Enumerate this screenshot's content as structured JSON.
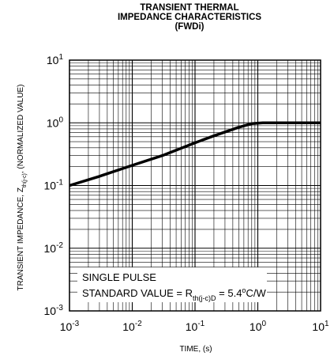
{
  "chart_data": {
    "type": "line",
    "title_lines": [
      "TRANSIENT THERMAL",
      "IMPEDANCE CHARACTERISTICS",
      "(FWDi)"
    ],
    "xlabel": "TIME, (s)",
    "ylabel": {
      "prefix": "TRANSIENT  IMPEDANCE, Z",
      "sub": "th(j-c)",
      "suffix": ", (NORMALIZED VALUE)"
    },
    "x_scale": "log",
    "y_scale": "log",
    "xlim": [
      0.001,
      10
    ],
    "ylim": [
      0.001,
      10
    ],
    "x_tick_labels": [
      {
        "base": "10",
        "exp": "-3"
      },
      {
        "base": "10",
        "exp": "-2"
      },
      {
        "base": "10",
        "exp": "-1"
      },
      {
        "base": "10",
        "exp": "0"
      },
      {
        "base": "10",
        "exp": "1"
      }
    ],
    "y_tick_labels": [
      {
        "base": "10",
        "exp": "-3"
      },
      {
        "base": "10",
        "exp": "-2"
      },
      {
        "base": "10",
        "exp": "-1"
      },
      {
        "base": "10",
        "exp": "0"
      },
      {
        "base": "10",
        "exp": "1"
      }
    ],
    "grid": true,
    "series": [
      {
        "x": [
          0.001,
          0.003,
          0.01,
          0.03,
          0.1,
          0.2,
          0.5,
          0.8,
          1.2,
          2,
          5,
          10
        ],
        "y": [
          0.1,
          0.14,
          0.21,
          0.3,
          0.48,
          0.62,
          0.85,
          0.97,
          1.0,
          1.0,
          1.0,
          1.0
        ]
      }
    ],
    "annotation": {
      "line1": "SINGLE PULSE",
      "line2_prefix": "STANDARD VALUE = R",
      "line2_sub": "th(j-c)D",
      "line2_value": " = 5.4",
      "line2_sup": "o",
      "line2_unit": "C/W"
    },
    "colors": {
      "grid": "#000000",
      "curve": "#000000",
      "background": "#ffffff"
    }
  }
}
